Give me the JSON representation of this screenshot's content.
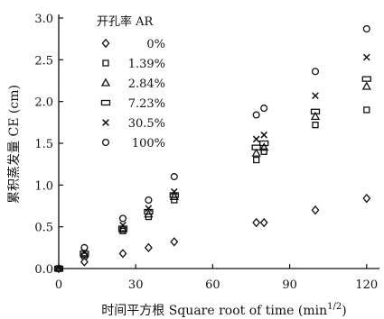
{
  "chart_data": {
    "type": "scatter",
    "xlabel": "时间平方根 Square root of time (min^1/2)",
    "ylabel": "累积蒸发量 CE (cm)",
    "xlim": [
      0,
      125
    ],
    "ylim": [
      0,
      3.0
    ],
    "xticks": [
      "0",
      "30",
      "60",
      "90",
      "120"
    ],
    "yticks": [
      "0.0",
      "0.5",
      "1.0",
      "1.5",
      "2.0",
      "2.5",
      "3.0"
    ],
    "legend_title": "开孔率 AR",
    "legend_position": "top-left",
    "grid": false,
    "series": [
      {
        "name": "0%",
        "marker": "diamond",
        "points": [
          [
            0,
            0
          ],
          [
            10,
            0.08
          ],
          [
            25,
            0.18
          ],
          [
            35,
            0.25
          ],
          [
            45,
            0.32
          ],
          [
            77,
            0.55
          ],
          [
            80,
            0.55
          ],
          [
            100,
            0.7
          ],
          [
            120,
            0.84
          ]
        ]
      },
      {
        "name": "1.39%",
        "marker": "square",
        "points": [
          [
            0,
            0
          ],
          [
            10,
            0.15
          ],
          [
            25,
            0.45
          ],
          [
            35,
            0.62
          ],
          [
            45,
            0.82
          ],
          [
            77,
            1.3
          ],
          [
            80,
            1.4
          ],
          [
            100,
            1.72
          ],
          [
            120,
            1.9
          ]
        ]
      },
      {
        "name": "2.84%",
        "marker": "triangle",
        "points": [
          [
            0,
            0
          ],
          [
            10,
            0.17
          ],
          [
            25,
            0.47
          ],
          [
            35,
            0.65
          ],
          [
            45,
            0.86
          ],
          [
            77,
            1.38
          ],
          [
            80,
            1.45
          ],
          [
            100,
            1.82
          ],
          [
            120,
            2.18
          ]
        ]
      },
      {
        "name": "7.23%",
        "marker": "rect",
        "points": [
          [
            0,
            0
          ],
          [
            10,
            0.18
          ],
          [
            25,
            0.48
          ],
          [
            35,
            0.68
          ],
          [
            45,
            0.88
          ],
          [
            77,
            1.45
          ],
          [
            80,
            1.5
          ],
          [
            100,
            1.88
          ],
          [
            120,
            2.27
          ]
        ]
      },
      {
        "name": "30.5%",
        "marker": "cross",
        "points": [
          [
            0,
            0
          ],
          [
            10,
            0.2
          ],
          [
            25,
            0.52
          ],
          [
            35,
            0.72
          ],
          [
            45,
            0.92
          ],
          [
            77,
            1.55
          ],
          [
            80,
            1.6
          ],
          [
            100,
            2.07
          ],
          [
            120,
            2.53
          ]
        ]
      },
      {
        "name": "100%",
        "marker": "circle",
        "points": [
          [
            0,
            0
          ],
          [
            10,
            0.25
          ],
          [
            25,
            0.6
          ],
          [
            35,
            0.82
          ],
          [
            45,
            1.1
          ],
          [
            77,
            1.84
          ],
          [
            80,
            1.92
          ],
          [
            100,
            2.36
          ],
          [
            120,
            2.87
          ]
        ]
      }
    ]
  }
}
